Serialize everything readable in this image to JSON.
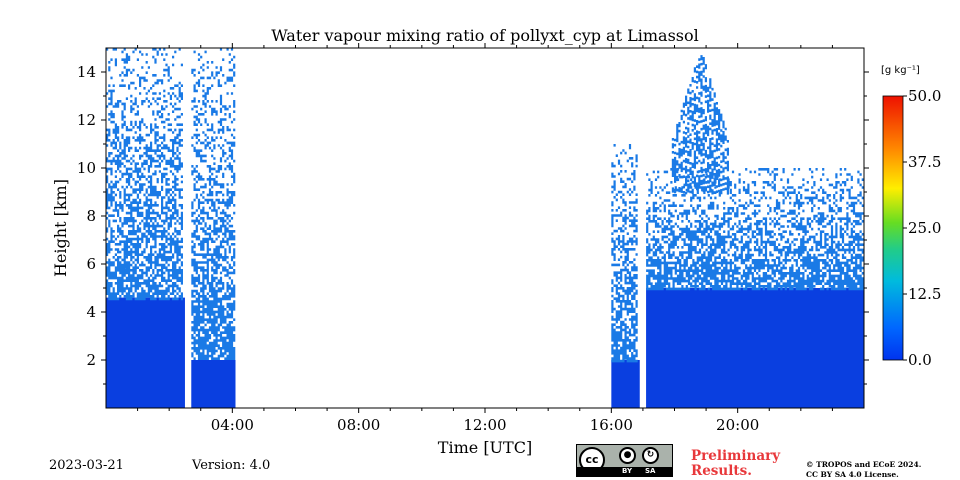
{
  "chart_data": {
    "type": "heatmap",
    "title": "Water vapour mixing ratio of pollyxt_cyp at Limassol",
    "xlabel": "Time [UTC]",
    "ylabel": "Height [km]",
    "xlim": [
      0,
      24
    ],
    "ylim": [
      0,
      15
    ],
    "x_ticks": [
      4,
      8,
      12,
      16,
      20
    ],
    "x_tick_labels": [
      "04:00",
      "08:00",
      "12:00",
      "16:00",
      "20:00"
    ],
    "y_ticks": [
      2,
      4,
      6,
      8,
      10,
      12,
      14
    ],
    "y_tick_labels": [
      "2",
      "4",
      "6",
      "8",
      "10",
      "12",
      "14"
    ],
    "colorbar": {
      "unit": "[g kg⁻¹]",
      "min": 0.0,
      "max": 50.0,
      "ticks": [
        0.0,
        12.5,
        25.0,
        37.5,
        50.0
      ],
      "tick_labels": [
        "0.0",
        "12.5",
        "25.0",
        "37.5",
        "50.0"
      ],
      "colormap": "jet"
    },
    "data_segments": [
      {
        "start_hour": 0.0,
        "end_hour": 2.5,
        "dense_top_km": 4.6,
        "sparse_top_km": 15.0
      },
      {
        "start_hour": 2.7,
        "end_hour": 4.1,
        "dense_top_km": 2.0,
        "sparse_top_km": 15.0
      },
      {
        "start_hour": 16.0,
        "end_hour": 16.9,
        "dense_top_km": 2.0,
        "sparse_top_km": 11.0
      },
      {
        "start_hour": 17.1,
        "end_hour": 24.0,
        "dense_top_km": 5.0,
        "sparse_top_km": 10.0
      }
    ],
    "plume": {
      "center_hour": 18.8,
      "top_km": 15.0
    }
  },
  "footer": {
    "date": "2023-03-21",
    "version": "Version: 4.0",
    "preliminary_line1": "Preliminary",
    "preliminary_line2": "Results.",
    "copyright_line1": "© TROPOS and ECoE 2024.",
    "copyright_line2": "CC BY SA 4.0 License.",
    "license_badge_cc": "cc",
    "license_badge_by": "BY",
    "license_badge_sa": "SA",
    "license_icon_names": [
      "creative-commons-icon",
      "attribution-icon",
      "share-alike-icon"
    ]
  },
  "colors": {
    "low": "#0a3fe0",
    "mid": "#1a7ae6",
    "frame": "#000000",
    "preliminary": "#e8383b"
  }
}
